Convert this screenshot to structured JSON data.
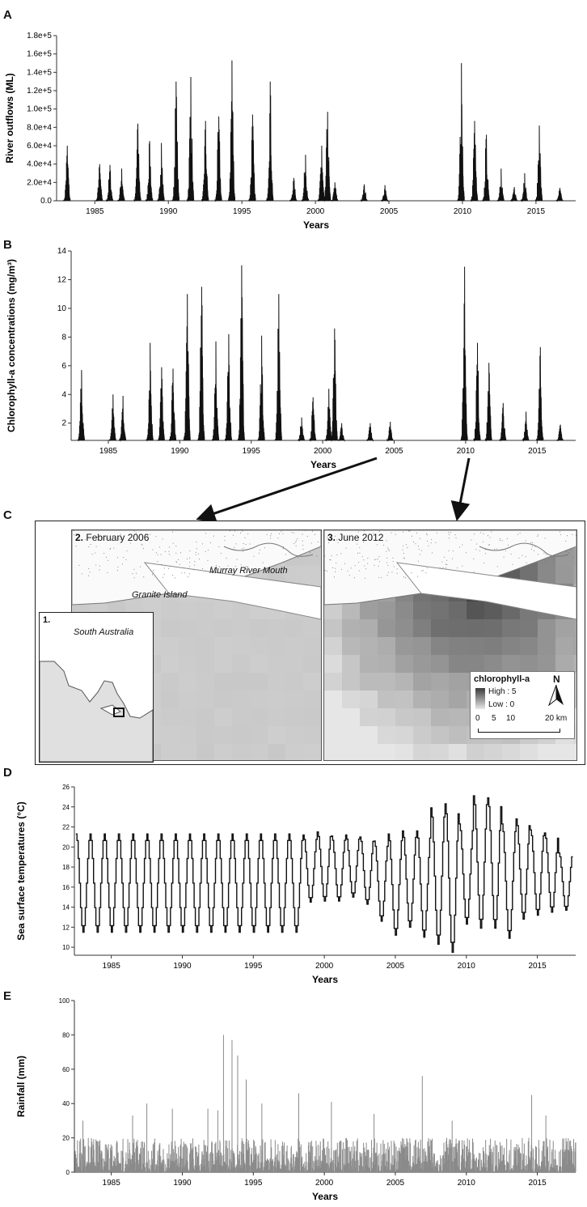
{
  "panels": {
    "a": "A",
    "b": "B",
    "c": "C",
    "d": "D",
    "e": "E"
  },
  "chart_data": [
    {
      "type": "line",
      "panel": "A",
      "xlabel": "Years",
      "ylabel": "River outflows (ML)",
      "xlim": [
        1982.4,
        2017.7
      ],
      "ylim": [
        0,
        180000
      ],
      "x_ticks": [
        1985,
        1990,
        1995,
        2000,
        2005,
        2010,
        2015
      ],
      "y_ticks": [
        "0.0",
        "2.0e+4",
        "4.0e+4",
        "6.0e+4",
        "8.0e+4",
        "1.0e+5",
        "1.2e+5",
        "1.4e+5",
        "1.6e+5",
        "1.8e+5"
      ],
      "y_tick_values": [
        0,
        20000,
        40000,
        60000,
        80000,
        100000,
        120000,
        140000,
        160000,
        180000
      ],
      "series": [
        {
          "peaks": [
            [
              1983.1,
              60000
            ],
            [
              1985.3,
              40000
            ],
            [
              1986.0,
              39000
            ],
            [
              1986.8,
              35000
            ],
            [
              1987.9,
              84000
            ],
            [
              1988.7,
              65000
            ],
            [
              1989.5,
              63000
            ],
            [
              1990.5,
              130000
            ],
            [
              1991.5,
              135000
            ],
            [
              1992.5,
              87000
            ],
            [
              1993.4,
              92000
            ],
            [
              1994.3,
              153000
            ],
            [
              1995.7,
              94000
            ],
            [
              1996.9,
              130000
            ],
            [
              1998.5,
              25000
            ],
            [
              1999.3,
              50000
            ],
            [
              2000.4,
              60000
            ],
            [
              2000.8,
              97000
            ],
            [
              2001.3,
              20000
            ],
            [
              2003.3,
              18000
            ],
            [
              2004.7,
              17000
            ],
            [
              2009.9,
              150000
            ],
            [
              2010.8,
              87000
            ],
            [
              2011.6,
              72000
            ],
            [
              2012.6,
              35000
            ],
            [
              2013.5,
              15000
            ],
            [
              2014.2,
              30000
            ],
            [
              2015.2,
              82000
            ],
            [
              2016.6,
              14000
            ]
          ]
        }
      ]
    },
    {
      "type": "line",
      "panel": "B",
      "xlabel": "Years",
      "ylabel": "Chlorophyll-a concentrations (mg/m³)",
      "xlim": [
        1982.4,
        2017.7
      ],
      "ylim": [
        0.8,
        14
      ],
      "x_ticks": [
        1985,
        1990,
        1995,
        2000,
        2005,
        2010,
        2015
      ],
      "y_ticks": [
        "2",
        "4",
        "6",
        "8",
        "10",
        "12",
        "14"
      ],
      "y_tick_values": [
        2,
        4,
        6,
        8,
        10,
        12,
        14
      ],
      "series": [
        {
          "peaks": [
            [
              1983.1,
              5.7
            ],
            [
              1985.3,
              4.0
            ],
            [
              1986.0,
              3.9
            ],
            [
              1987.9,
              7.6
            ],
            [
              1988.7,
              5.9
            ],
            [
              1989.5,
              5.8
            ],
            [
              1990.5,
              11.0
            ],
            [
              1991.5,
              11.5
            ],
            [
              1992.5,
              7.7
            ],
            [
              1993.4,
              8.2
            ],
            [
              1994.3,
              13.0
            ],
            [
              1995.7,
              8.1
            ],
            [
              1996.9,
              11.0
            ],
            [
              1998.5,
              2.4
            ],
            [
              1999.3,
              3.8
            ],
            [
              2000.4,
              4.4
            ],
            [
              2000.8,
              8.6
            ],
            [
              2001.3,
              2.0
            ],
            [
              2003.3,
              2.0
            ],
            [
              2004.7,
              2.1
            ],
            [
              2009.9,
              12.9
            ],
            [
              2010.8,
              7.6
            ],
            [
              2011.6,
              6.2
            ],
            [
              2012.6,
              3.4
            ],
            [
              2014.2,
              2.8
            ],
            [
              2015.2,
              7.3
            ],
            [
              2016.6,
              1.9
            ]
          ]
        }
      ]
    },
    {
      "type": "line",
      "panel": "D",
      "xlabel": "Years",
      "ylabel": "Sea surface temperatures (°C)",
      "xlim": [
        1982.4,
        2017.7
      ],
      "ylim": [
        9.2,
        26
      ],
      "x_ticks": [
        1985,
        1990,
        1995,
        2000,
        2005,
        2010,
        2015
      ],
      "y_ticks": [
        "10",
        "12",
        "14",
        "16",
        "18",
        "20",
        "22",
        "24",
        "26"
      ],
      "y_tick_values": [
        10,
        12,
        14,
        16,
        18,
        20,
        22,
        24,
        26
      ],
      "series": [
        {
          "annual_extremes": [
            [
              1983,
              11.5,
              21.3
            ],
            [
              1984,
              11.5,
              21.3
            ],
            [
              1985,
              11.5,
              21.3
            ],
            [
              1986,
              11.5,
              21.3
            ],
            [
              1987,
              11.5,
              21.3
            ],
            [
              1988,
              11.5,
              21.3
            ],
            [
              1989,
              11.5,
              21.3
            ],
            [
              1990,
              11.5,
              21.3
            ],
            [
              1991,
              11.5,
              21.3
            ],
            [
              1992,
              11.5,
              21.3
            ],
            [
              1993,
              11.5,
              21.3
            ],
            [
              1994,
              11.5,
              21.3
            ],
            [
              1995,
              11.5,
              21.3
            ],
            [
              1996,
              11.5,
              21.3
            ],
            [
              1997,
              11.5,
              21.3
            ],
            [
              1998,
              11.5,
              21.3
            ],
            [
              1999,
              14.5,
              21.2
            ],
            [
              2000,
              14.6,
              21.5
            ],
            [
              2001,
              14.6,
              21.1
            ],
            [
              2002,
              15.0,
              21.2
            ],
            [
              2003,
              14.3,
              21.0
            ],
            [
              2004,
              12.6,
              20.6
            ],
            [
              2005,
              11.2,
              21.3
            ],
            [
              2006,
              12.0,
              21.6
            ],
            [
              2007,
              11.0,
              21.6
            ],
            [
              2008,
              10.3,
              23.9
            ],
            [
              2009,
              9.5,
              24.3
            ],
            [
              2010,
              12.3,
              22.3
            ],
            [
              2011,
              11.9,
              25.1
            ],
            [
              2012,
              11.9,
              24.9
            ],
            [
              2013,
              10.9,
              22.3
            ],
            [
              2014,
              12.8,
              22.8
            ],
            [
              2015,
              13.2,
              21.7
            ],
            [
              2016,
              13.5,
              21.4
            ],
            [
              2017,
              13.7,
              19.4
            ]
          ]
        }
      ]
    },
    {
      "type": "bar",
      "panel": "E",
      "xlabel": "Years",
      "ylabel": "Rainfall (mm)",
      "xlim": [
        1982.4,
        2017.7
      ],
      "ylim": [
        0,
        100
      ],
      "x_ticks": [
        1985,
        1990,
        1995,
        2000,
        2005,
        2010,
        2015
      ],
      "y_ticks": [
        "0",
        "20",
        "40",
        "60",
        "80",
        "100"
      ],
      "y_tick_values": [
        0,
        20,
        40,
        60,
        80,
        100
      ],
      "series": [
        {
          "notable_peaks": [
            [
              1983.0,
              30
            ],
            [
              1986.5,
              33
            ],
            [
              1987.5,
              40
            ],
            [
              1989.3,
              37
            ],
            [
              1991.8,
              37
            ],
            [
              1992.5,
              36
            ],
            [
              1992.9,
              80
            ],
            [
              1993.5,
              77
            ],
            [
              1993.9,
              68
            ],
            [
              1994.5,
              54
            ],
            [
              1995.6,
              40
            ],
            [
              1998.2,
              46
            ],
            [
              2000.5,
              41
            ],
            [
              2003.5,
              34
            ],
            [
              2006.9,
              56
            ],
            [
              2009.0,
              30
            ],
            [
              2014.6,
              45
            ],
            [
              2015.6,
              33
            ]
          ],
          "typical_daily_max": 20
        }
      ]
    }
  ],
  "map": {
    "panel2_title": "2. February 2006",
    "panel2_num": "2.",
    "panel2_text": "February 2006",
    "panel3_num": "3.",
    "panel3_text": "June 2012",
    "label_granite": "Granite Island",
    "label_murray": "Murray River Mouth",
    "inset_num": "1.",
    "inset_title": "South Australia",
    "legend_title": "chlorophyll-a",
    "legend_high": "High : 5",
    "legend_low": "Low : 0",
    "north_label": "N",
    "scale_ticks": [
      "0",
      "5",
      "10",
      "20 km"
    ],
    "colors": {
      "land": "#ffffff",
      "sea_low": "#c8c8c8",
      "sea_high": "#3a3a3a"
    }
  }
}
